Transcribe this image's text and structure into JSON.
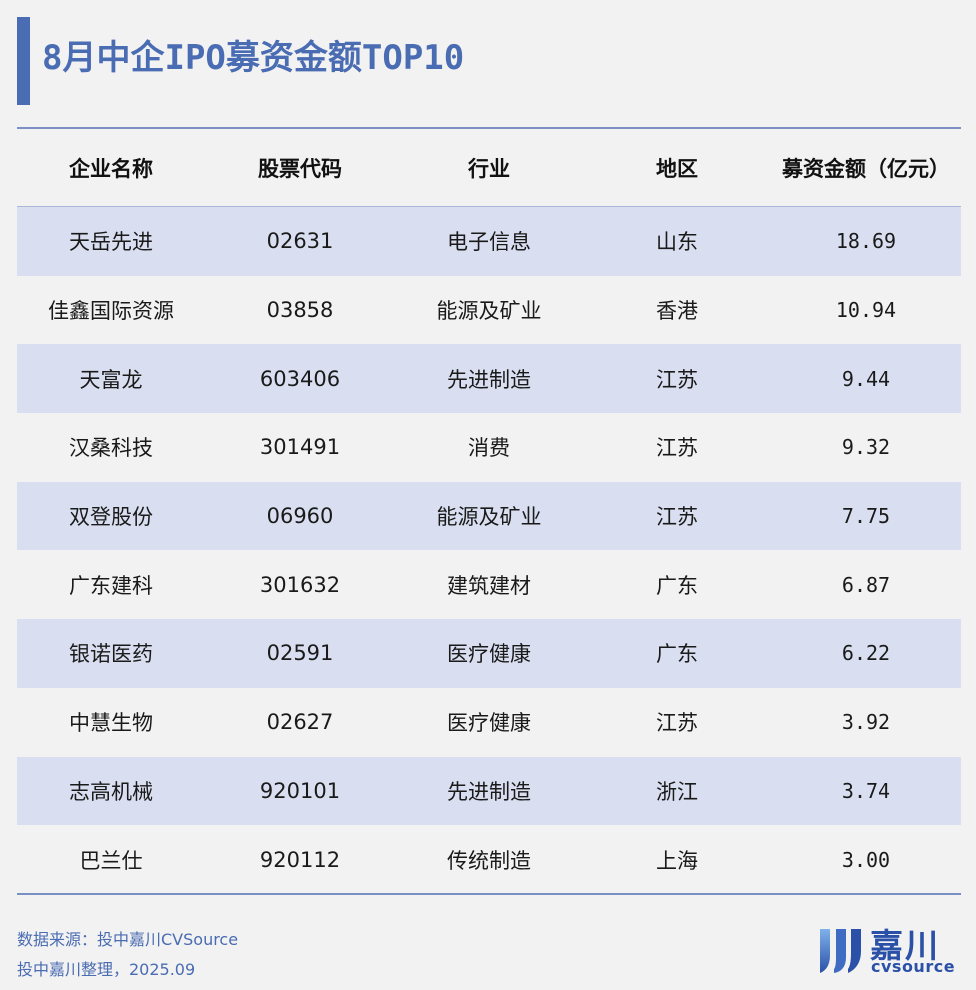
{
  "title": "8月中企IPO募资金额TOP10",
  "colors": {
    "accent": "#4a6cb3",
    "row_shade": "#d9dff0",
    "background": "#f2f2f2"
  },
  "table": {
    "headers": [
      "企业名称",
      "股票代码",
      "行业",
      "地区",
      "募资金额（亿元）"
    ],
    "rows": [
      [
        "天岳先进",
        "02631",
        "电子信息",
        "山东",
        "18.69"
      ],
      [
        "佳鑫国际资源",
        "03858",
        "能源及矿业",
        "香港",
        "10.94"
      ],
      [
        "天富龙",
        "603406",
        "先进制造",
        "江苏",
        "9.44"
      ],
      [
        "汉桑科技",
        "301491",
        "消费",
        "江苏",
        "9.32"
      ],
      [
        "双登股份",
        "06960",
        "能源及矿业",
        "江苏",
        "7.75"
      ],
      [
        "广东建科",
        "301632",
        "建筑建材",
        "广东",
        "6.87"
      ],
      [
        "银诺医药",
        "02591",
        "医疗健康",
        "广东",
        "6.22"
      ],
      [
        "中慧生物",
        "02627",
        "医疗健康",
        "江苏",
        "3.92"
      ],
      [
        "志高机械",
        "920101",
        "先进制造",
        "浙江",
        "3.74"
      ],
      [
        "巴兰仕",
        "920112",
        "传统制造",
        "上海",
        "3.00"
      ]
    ]
  },
  "footer": {
    "source": "数据来源：投中嘉川CVSource",
    "compiled": "投中嘉川整理，2025.09"
  },
  "logo": {
    "cn": "嘉川",
    "en": "cvsource",
    "icon": "jiachuan-logo-icon"
  }
}
